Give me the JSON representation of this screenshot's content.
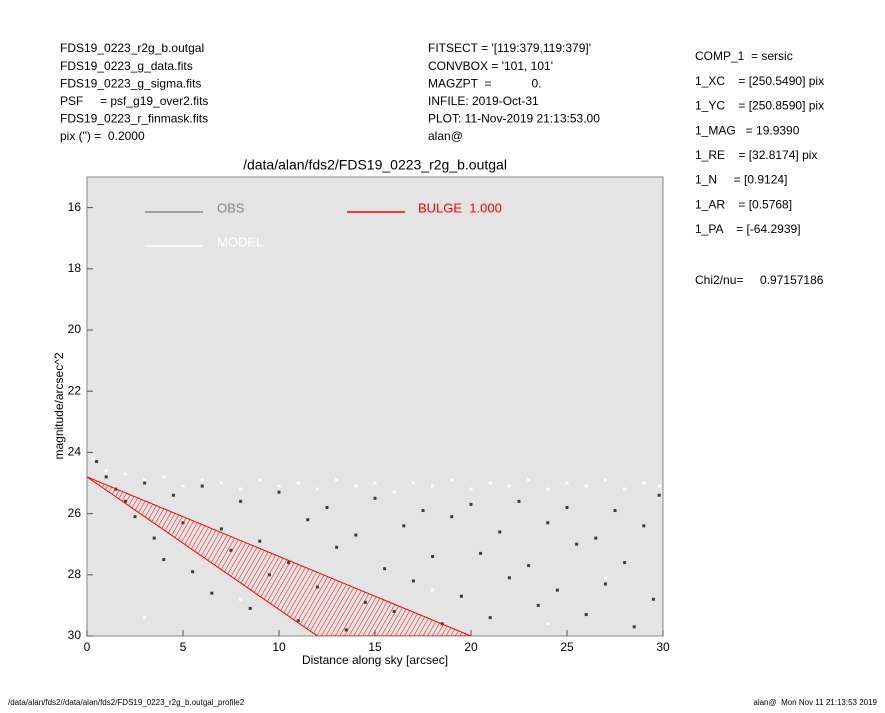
{
  "header": {
    "left": [
      "FDS19_0223_r2g_b.outgal",
      "FDS19_0223_g_data.fits",
      "FDS19_0223_g_sigma.fits",
      "PSF     = psf_g19_over2.fits",
      "FDS19_0223_r_finmask.fits",
      "pix (\") =  0.2000"
    ],
    "middle": [
      "FITSECT = '[119:379,119:379]'",
      "CONVBOX = '101, 101'",
      "MAGZPT  =            0.",
      "INFILE: 2019-Oct-31",
      "PLOT: 11-Nov-2019 21:13:53.00",
      "alan@"
    ],
    "right": [
      "COMP_1  = sersic",
      "1_XC    = [250.5490] pix",
      "1_YC    = [250.8590] pix",
      "1_MAG   = 19.9390",
      "1_RE    = [32.8174] pix",
      "1_N     = [0.9124]",
      "1_AR    = [0.5768]",
      "1_PA    = [-64.2939]"
    ],
    "chi2": "Chi2/nu=     0.97157186"
  },
  "footer": {
    "left": "/data/alan/fds2//data/alan/fds2/FDS19_0223_r2g_b.outgal_profile2",
    "right": "alan@  Mon Nov 11 21:13:53 2019"
  },
  "chart_data": {
    "type": "scatter",
    "title": "/data/alan/fds2/FDS19_0223_r2g_b.outgal",
    "x_label": "Distance along sky [arcsec]",
    "y_label": "magnitude/arcsec^2",
    "xlim": [
      0,
      30
    ],
    "ylim": [
      15,
      30
    ],
    "y_inverted": true,
    "xticks": [
      0,
      5,
      10,
      15,
      20,
      25,
      30
    ],
    "yticks": [
      16,
      18,
      20,
      22,
      24,
      26,
      28,
      30
    ],
    "series": [
      {
        "name": "OBS",
        "color": "#3c3c3c",
        "style": "points",
        "x": [
          0.5,
          1,
          1.5,
          2,
          2.5,
          3,
          3.5,
          4,
          4.5,
          5,
          5.5,
          6,
          6.5,
          7,
          7.5,
          8,
          8.5,
          9,
          9.5,
          10,
          10.5,
          11,
          11.5,
          12,
          12.5,
          13,
          13.5,
          14,
          14.5,
          15,
          15.5,
          16,
          16.5,
          17,
          17.5,
          18,
          18.5,
          19,
          19.5,
          20,
          20.5,
          21,
          21.5,
          22,
          22.5,
          23,
          23.5,
          24,
          24.5,
          25,
          25.5,
          26,
          26.5,
          27,
          27.5,
          28,
          28.5,
          29,
          29.5,
          29.8
        ],
        "values": [
          24.3,
          24.8,
          25.2,
          25.6,
          26.1,
          25,
          26.8,
          27.5,
          25.4,
          26.3,
          27.9,
          25.1,
          28.6,
          26.5,
          27.2,
          25.6,
          29.1,
          26.9,
          28,
          25.3,
          27.6,
          29.5,
          26.2,
          28.4,
          25.8,
          27.1,
          29.8,
          26.7,
          28.9,
          25.5,
          27.8,
          29.2,
          26.4,
          28.2,
          25.9,
          27.4,
          29.6,
          26.1,
          28.7,
          25.7,
          27.3,
          29.4,
          26.6,
          28.1,
          25.6,
          27.7,
          29,
          26.3,
          28.5,
          25.8,
          27,
          29.3,
          26.8,
          28.3,
          25.9,
          27.6,
          29.7,
          26.4,
          28.8,
          25.4
        ]
      },
      {
        "name": "MODEL",
        "color": "#ffffff",
        "style": "points",
        "x": [
          0.3,
          1,
          2,
          3,
          4,
          5,
          6,
          7,
          8,
          9,
          10,
          11,
          12,
          13,
          14,
          15,
          16,
          17,
          18,
          19,
          20,
          21,
          22,
          23,
          24,
          25,
          26,
          27,
          28,
          29,
          29.8,
          3,
          8,
          12,
          18,
          24,
          27
        ],
        "values": [
          24.2,
          24.6,
          24.7,
          24.9,
          24.8,
          25.1,
          24.9,
          25,
          25.2,
          24.9,
          25.1,
          25,
          25.2,
          24.9,
          25.1,
          25,
          25.3,
          25,
          25.1,
          24.9,
          25.2,
          25,
          25.1,
          24.9,
          25.2,
          25,
          25.1,
          24.9,
          25.2,
          25,
          25.1,
          29.4,
          28.8,
          29.9,
          28.5,
          29.6,
          28.1
        ]
      },
      {
        "name": "BULGE  1.000",
        "color": "#ff0000",
        "style": "area",
        "x": [
          0,
          20,
          12,
          0
        ],
        "values": [
          24.8,
          30,
          30,
          24.8
        ]
      }
    ]
  }
}
